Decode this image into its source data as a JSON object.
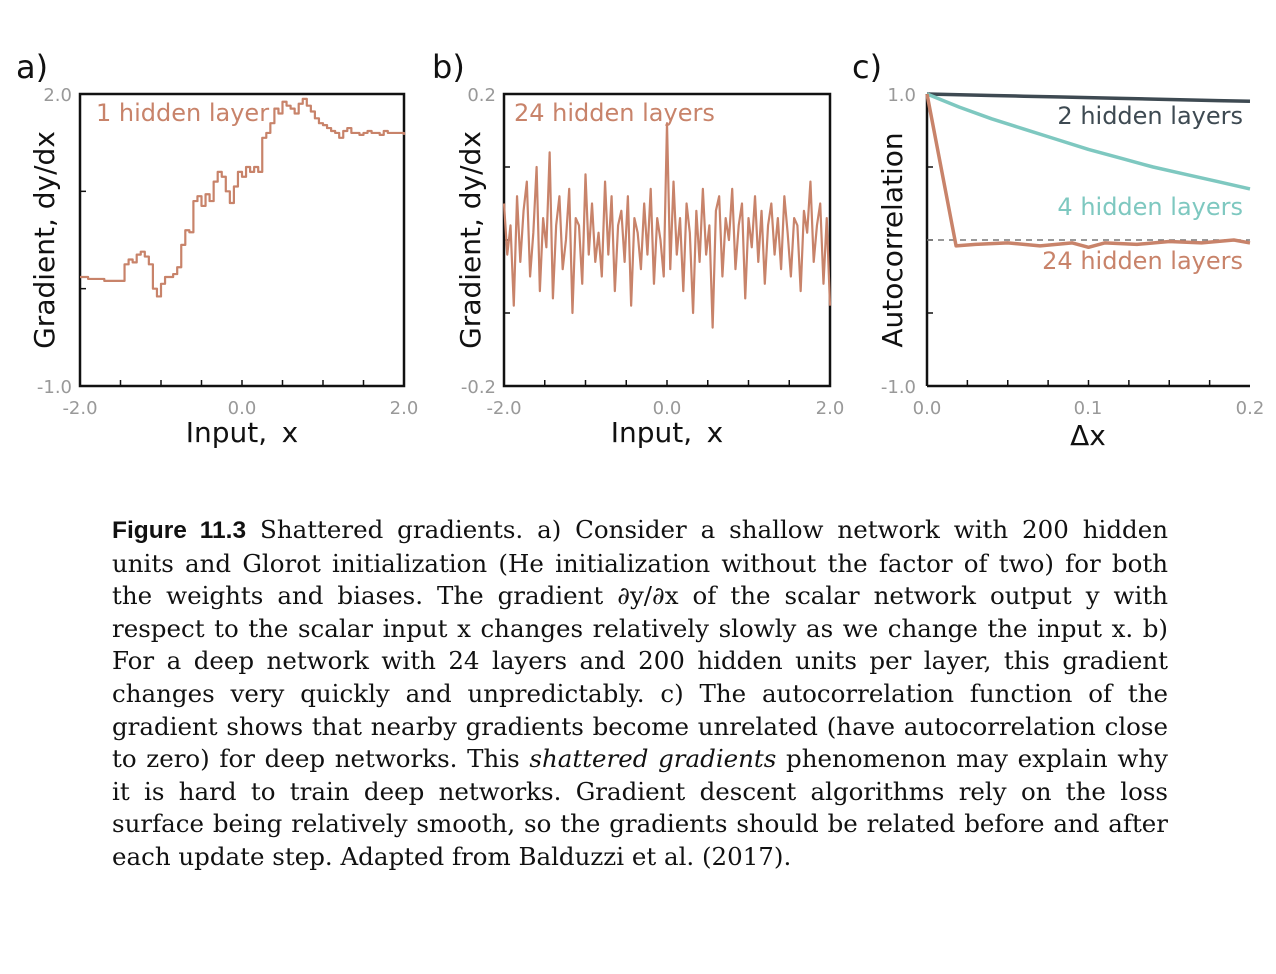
{
  "figure": {
    "panels": [
      {
        "letter": "a)",
        "xlabel": "Input,  x",
        "ylabel": "Gradient, dy/dx",
        "ytick_labels": [
          "2.0",
          "-1.0"
        ],
        "xtick_labels": [
          "-2.0",
          "0.0",
          "2.0"
        ],
        "annotation": "1 hidden layer",
        "series_color": "#C8836A"
      },
      {
        "letter": "b)",
        "xlabel": "Input,  x",
        "ylabel": "Gradient, dy/dx",
        "ytick_labels": [
          "0.2",
          "-0.2"
        ],
        "xtick_labels": [
          "-2.0",
          "0.0",
          "2.0"
        ],
        "annotation": "24 hidden layers",
        "series_color": "#C8836A"
      },
      {
        "letter": "c)",
        "xlabel": "Δx",
        "ylabel": "Autocorrelation",
        "ytick_labels": [
          "1.0",
          "-1.0"
        ],
        "xtick_labels": [
          "0.0",
          "0.1",
          "0.2"
        ],
        "annotations": [
          {
            "text": "2 hidden layers",
            "color": "#3E4A52"
          },
          {
            "text": "4 hidden layers",
            "color": "#7EC8C0"
          },
          {
            "text": "24 hidden layers",
            "color": "#C8836A"
          }
        ]
      }
    ]
  },
  "chart_data": [
    {
      "type": "line",
      "title": "",
      "xlabel": "Input, x",
      "ylabel": "Gradient, dy/dx",
      "xlim": [
        -2.0,
        2.0
      ],
      "ylim": [
        -1.0,
        2.0
      ],
      "grid": false,
      "series": [
        {
          "name": "1 hidden layer",
          "color": "#C8836A",
          "x": [
            -2.0,
            -1.9,
            -1.8,
            -1.7,
            -1.6,
            -1.5,
            -1.45,
            -1.4,
            -1.35,
            -1.3,
            -1.25,
            -1.2,
            -1.15,
            -1.1,
            -1.05,
            -1.0,
            -0.95,
            -0.9,
            -0.85,
            -0.8,
            -0.75,
            -0.7,
            -0.65,
            -0.6,
            -0.55,
            -0.5,
            -0.45,
            -0.4,
            -0.35,
            -0.3,
            -0.25,
            -0.2,
            -0.15,
            -0.1,
            -0.05,
            0.0,
            0.05,
            0.1,
            0.15,
            0.2,
            0.25,
            0.3,
            0.35,
            0.4,
            0.45,
            0.5,
            0.55,
            0.6,
            0.65,
            0.7,
            0.75,
            0.8,
            0.85,
            0.9,
            0.95,
            1.0,
            1.05,
            1.1,
            1.15,
            1.2,
            1.25,
            1.3,
            1.35,
            1.4,
            1.45,
            1.5,
            1.55,
            1.6,
            1.65,
            1.7,
            1.75,
            1.8,
            1.9,
            2.0
          ],
          "values": [
            0.12,
            0.1,
            0.1,
            0.08,
            0.08,
            0.08,
            0.25,
            0.3,
            0.27,
            0.35,
            0.38,
            0.33,
            0.25,
            0.0,
            -0.08,
            0.05,
            0.12,
            0.12,
            0.15,
            0.22,
            0.45,
            0.6,
            0.58,
            0.9,
            0.95,
            0.85,
            0.97,
            0.9,
            1.1,
            1.2,
            1.15,
            1.0,
            0.88,
            1.05,
            1.2,
            1.15,
            1.25,
            1.2,
            1.25,
            1.2,
            1.55,
            1.6,
            1.7,
            1.85,
            1.8,
            1.92,
            1.88,
            1.85,
            1.8,
            1.9,
            1.95,
            1.88,
            1.82,
            1.75,
            1.7,
            1.68,
            1.65,
            1.62,
            1.6,
            1.55,
            1.62,
            1.65,
            1.6,
            1.6,
            1.58,
            1.6,
            1.62,
            1.6,
            1.6,
            1.58,
            1.62,
            1.6,
            1.6,
            1.58
          ]
        }
      ]
    },
    {
      "type": "line",
      "title": "",
      "xlabel": "Input, x",
      "ylabel": "Gradient, dy/dx",
      "xlim": [
        -2.0,
        2.0
      ],
      "ylim": [
        -0.2,
        0.2
      ],
      "grid": false,
      "series": [
        {
          "name": "24 hidden layers",
          "color": "#C8836A",
          "x": [
            -2.0,
            -1.96,
            -1.92,
            -1.88,
            -1.84,
            -1.8,
            -1.76,
            -1.72,
            -1.68,
            -1.64,
            -1.6,
            -1.56,
            -1.52,
            -1.48,
            -1.44,
            -1.4,
            -1.36,
            -1.32,
            -1.28,
            -1.24,
            -1.2,
            -1.16,
            -1.12,
            -1.08,
            -1.04,
            -1.0,
            -0.96,
            -0.92,
            -0.88,
            -0.84,
            -0.8,
            -0.76,
            -0.72,
            -0.68,
            -0.64,
            -0.6,
            -0.56,
            -0.52,
            -0.48,
            -0.44,
            -0.4,
            -0.36,
            -0.32,
            -0.28,
            -0.24,
            -0.2,
            -0.16,
            -0.12,
            -0.08,
            -0.04,
            0.0,
            0.04,
            0.08,
            0.12,
            0.16,
            0.2,
            0.24,
            0.28,
            0.32,
            0.36,
            0.4,
            0.44,
            0.48,
            0.52,
            0.56,
            0.6,
            0.64,
            0.68,
            0.72,
            0.76,
            0.8,
            0.84,
            0.88,
            0.92,
            0.96,
            1.0,
            1.04,
            1.08,
            1.12,
            1.16,
            1.2,
            1.24,
            1.28,
            1.32,
            1.36,
            1.4,
            1.44,
            1.48,
            1.52,
            1.56,
            1.6,
            1.64,
            1.68,
            1.72,
            1.76,
            1.8,
            1.84,
            1.88,
            1.92,
            1.96,
            2.0
          ],
          "values": [
            0.05,
            -0.02,
            0.02,
            -0.09,
            0.06,
            -0.03,
            0.04,
            0.08,
            -0.05,
            0.01,
            0.1,
            -0.07,
            0.03,
            -0.01,
            0.12,
            -0.08,
            0.02,
            0.06,
            -0.04,
            0.0,
            0.07,
            -0.1,
            0.03,
            0.02,
            -0.06,
            0.09,
            -0.02,
            0.05,
            -0.03,
            0.01,
            -0.05,
            0.08,
            -0.02,
            0.06,
            -0.07,
            0.02,
            0.04,
            -0.03,
            0.06,
            -0.09,
            0.03,
            0.01,
            -0.04,
            0.05,
            -0.02,
            0.07,
            -0.06,
            0.03,
            0.0,
            -0.05,
            0.16,
            -0.04,
            0.08,
            -0.02,
            0.03,
            -0.07,
            0.05,
            0.01,
            -0.1,
            0.04,
            -0.03,
            0.07,
            -0.02,
            0.02,
            -0.12,
            0.04,
            0.06,
            -0.05,
            0.03,
            0.0,
            0.07,
            -0.04,
            0.02,
            0.05,
            -0.08,
            0.03,
            -0.01,
            0.06,
            -0.03,
            0.04,
            -0.06,
            0.02,
            0.05,
            -0.02,
            0.03,
            -0.04,
            0.06,
            0.01,
            -0.05,
            0.03,
            0.02,
            -0.07,
            0.04,
            0.01,
            0.08,
            -0.03,
            0.02,
            0.05,
            -0.06,
            0.03,
            -0.09
          ]
        }
      ]
    },
    {
      "type": "line",
      "title": "",
      "xlabel": "Δx",
      "ylabel": "Autocorrelation",
      "xlim": [
        0.0,
        0.2
      ],
      "ylim": [
        -1.0,
        1.0
      ],
      "grid": false,
      "reference_line": 0.0,
      "series": [
        {
          "name": "2 hidden layers",
          "color": "#3E4A52",
          "x": [
            0.0,
            0.02,
            0.04,
            0.06,
            0.08,
            0.1,
            0.12,
            0.14,
            0.16,
            0.18,
            0.2
          ],
          "values": [
            1.0,
            0.995,
            0.99,
            0.985,
            0.98,
            0.975,
            0.97,
            0.965,
            0.96,
            0.955,
            0.95
          ]
        },
        {
          "name": "4 hidden layers",
          "color": "#7EC8C0",
          "x": [
            0.0,
            0.02,
            0.04,
            0.06,
            0.08,
            0.1,
            0.12,
            0.14,
            0.16,
            0.18,
            0.2
          ],
          "values": [
            1.0,
            0.91,
            0.83,
            0.76,
            0.69,
            0.62,
            0.56,
            0.5,
            0.45,
            0.4,
            0.35
          ]
        },
        {
          "name": "24 hidden layers",
          "color": "#C8836A",
          "x": [
            0.0,
            0.018,
            0.03,
            0.05,
            0.07,
            0.09,
            0.1,
            0.11,
            0.13,
            0.15,
            0.17,
            0.19,
            0.2
          ],
          "values": [
            1.0,
            -0.04,
            -0.03,
            -0.02,
            -0.04,
            -0.02,
            -0.05,
            -0.02,
            -0.03,
            -0.01,
            -0.02,
            0.0,
            -0.02
          ]
        }
      ]
    }
  ],
  "caption": {
    "label": "Figure 11.3",
    "text_a": " Shattered gradients. a) Consider a shallow network with 200 hidden units and Glorot initialization (He initialization without the factor of two) for both the weights and biases. The gradient ∂y/∂x of the scalar network output y with respect to the scalar input x changes relatively slowly as we change the input x. b) For a deep network with 24 layers and 200 hidden units per layer, this gradient changes very quickly and unpredictably. c) The autocorrelation function of the gradient shows that nearby gradients become unrelated (have autocorrelation close to zero) for deep networks. This ",
    "italic": "shattered gradients",
    "text_b": " phenomenon may explain why it is hard to train deep networks. Gradient descent algorithms rely on the loss surface being relatively smooth, so the gradients should be related before and after each update step. Adapted from Balduzzi et al. (2017)."
  }
}
